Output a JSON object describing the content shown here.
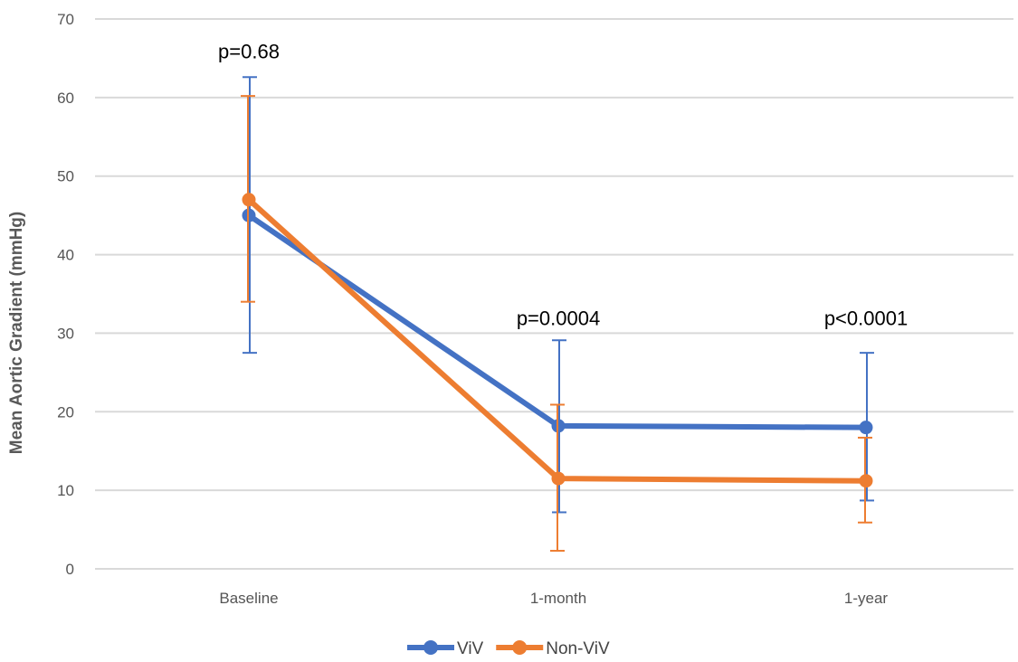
{
  "chart_data": {
    "type": "line",
    "title": "",
    "xlabel": "",
    "ylabel": "Mean Aortic Gradient (mmHg)",
    "categories": [
      "Baseline",
      "1-month",
      "1-year"
    ],
    "ylim": [
      0,
      70
    ],
    "yticks": [
      0,
      10,
      20,
      30,
      40,
      50,
      60,
      70
    ],
    "grid": true,
    "legend_position": "bottom",
    "series": [
      {
        "name": "ViV",
        "color": "#4472C4",
        "values": [
          45.0,
          18.2,
          18.0
        ],
        "error_low": [
          27.5,
          7.2,
          8.7
        ],
        "error_high": [
          62.6,
          29.1,
          27.5
        ]
      },
      {
        "name": "Non-ViV",
        "color": "#ED7D31",
        "values": [
          47.0,
          11.5,
          11.2
        ],
        "error_low": [
          34.0,
          2.3,
          5.9
        ],
        "error_high": [
          60.2,
          20.9,
          16.7
        ]
      }
    ],
    "annotations": [
      {
        "category": "Baseline",
        "text": "p=0.68",
        "y": 65
      },
      {
        "category": "1-month",
        "text": "p=0.0004",
        "y": 31
      },
      {
        "category": "1-year",
        "text": "p<0.0001",
        "y": 31
      }
    ]
  }
}
